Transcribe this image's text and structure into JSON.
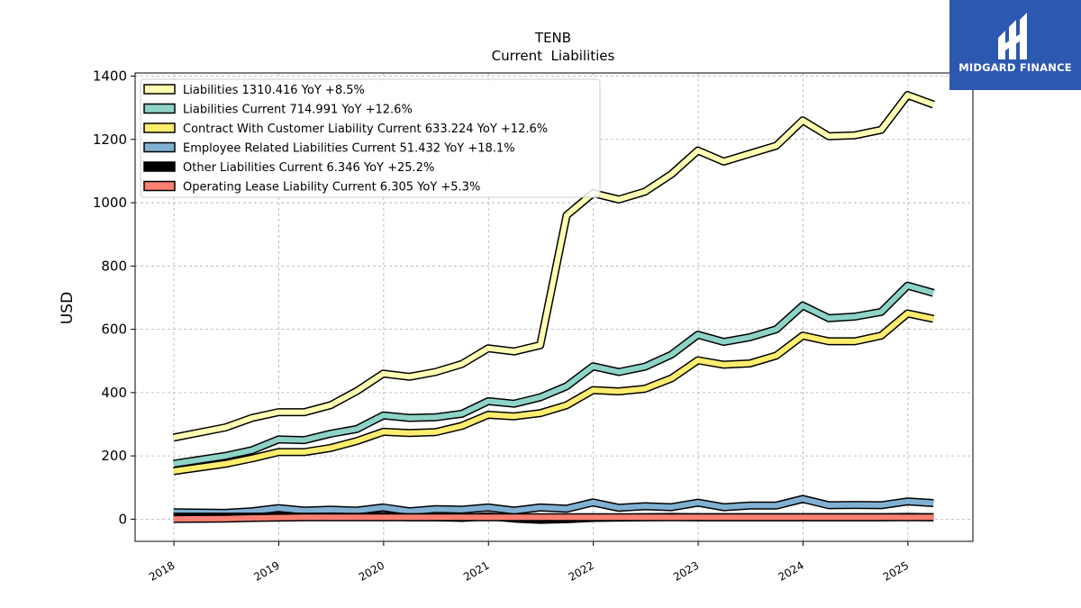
{
  "chart_data": {
    "type": "line",
    "title": "TENB",
    "subtitle": "Current  Liabilities",
    "xlabel": "",
    "ylabel": "USD",
    "ylim": [
      -70,
      1410
    ],
    "xlim": [
      2017.63,
      2025.62
    ],
    "x_ticks": [
      2018,
      2019,
      2020,
      2021,
      2022,
      2023,
      2024,
      2025
    ],
    "y_ticks": [
      0,
      200,
      400,
      600,
      800,
      1000,
      1200,
      1400
    ],
    "grid": true,
    "legend_position": "top-left",
    "x": [
      "2017-12-31",
      "2018-06-30",
      "2018-09-30",
      "2018-12-31",
      "2019-03-31",
      "2019-06-30",
      "2019-09-30",
      "2019-12-31",
      "2020-03-31",
      "2020-06-30",
      "2020-09-30",
      "2020-12-31",
      "2021-03-31",
      "2021-06-30",
      "2021-09-30",
      "2021-12-31",
      "2022-03-31",
      "2022-06-30",
      "2022-09-30",
      "2022-12-31",
      "2023-03-31",
      "2023-06-30",
      "2023-09-30",
      "2023-12-31",
      "2024-03-31",
      "2024-06-30",
      "2024-09-30",
      "2024-12-31",
      "2025-03-31"
    ],
    "series": [
      {
        "name": "Liabilities",
        "legend_label": "Liabilities  1310.416 YoY +8.5%",
        "color": "#ffffb3",
        "values": [
          258,
          290,
          320,
          338,
          338,
          360,
          405,
          460,
          450,
          465,
          490,
          540,
          530,
          550,
          960,
          1030,
          1010,
          1035,
          1090,
          1165,
          1130,
          1155,
          1180,
          1260,
          1210,
          1213,
          1230,
          1340,
          1310
        ]
      },
      {
        "name": "Liabilities Current",
        "legend_label": "Liabilities Current  714.991 YoY +12.6%",
        "color": "#8dd3c7",
        "values": [
          175,
          200,
          218,
          252,
          250,
          270,
          285,
          328,
          320,
          322,
          333,
          373,
          365,
          385,
          420,
          483,
          465,
          482,
          520,
          583,
          560,
          575,
          600,
          675,
          635,
          640,
          655,
          738,
          715
        ]
      },
      {
        "name": "Contract With Customer Liability Current",
        "legend_label": "Contract With Customer Liability Current  633.224 YoY +12.6%",
        "color": "#ffed6f",
        "values": [
          152,
          175,
          192,
          212,
          212,
          225,
          247,
          276,
          272,
          275,
          295,
          330,
          325,
          335,
          360,
          408,
          404,
          412,
          445,
          502,
          488,
          492,
          517,
          580,
          562,
          562,
          580,
          650,
          633
        ]
      },
      {
        "name": "Employee Related Liabilities Current",
        "legend_label": "Employee Related Liabilities Current  51.432 YoY +18.1%",
        "color": "#80b1d3",
        "values": [
          22,
          20,
          25,
          35,
          27,
          30,
          27,
          37,
          25,
          32,
          30,
          37,
          27,
          37,
          33,
          53,
          36,
          41,
          38,
          52,
          38,
          43,
          43,
          64,
          44,
          45,
          44,
          56,
          51
        ]
      },
      {
        "name": "Other Liabilities Current",
        "legend_label": "Other Liabilities Current  6.346 YoY +25.2%",
        "color": "#000000",
        "values": [
          8,
          8,
          8,
          9,
          8,
          8,
          7,
          10,
          6,
          6,
          4,
          9,
          2,
          -2,
          0,
          4,
          5,
          6,
          7,
          6,
          6,
          6,
          6,
          6,
          6,
          6,
          6,
          7,
          6
        ]
      },
      {
        "name": "Operating Lease Liability Current",
        "legend_label": "Operating Lease Liability Current  6.305 YoY +5.3%",
        "color": "#fb8072",
        "values": [
          1,
          2,
          4,
          5,
          6,
          6,
          6,
          6,
          6,
          6,
          6,
          6,
          6,
          6,
          6,
          6,
          6,
          6,
          6,
          6,
          6,
          6,
          6,
          6,
          6,
          6,
          6,
          6,
          6
        ]
      }
    ]
  },
  "brand": {
    "name": "MIDGARD FINANCE",
    "background": "#2d58b0",
    "icon": "midgard-logo-icon"
  }
}
